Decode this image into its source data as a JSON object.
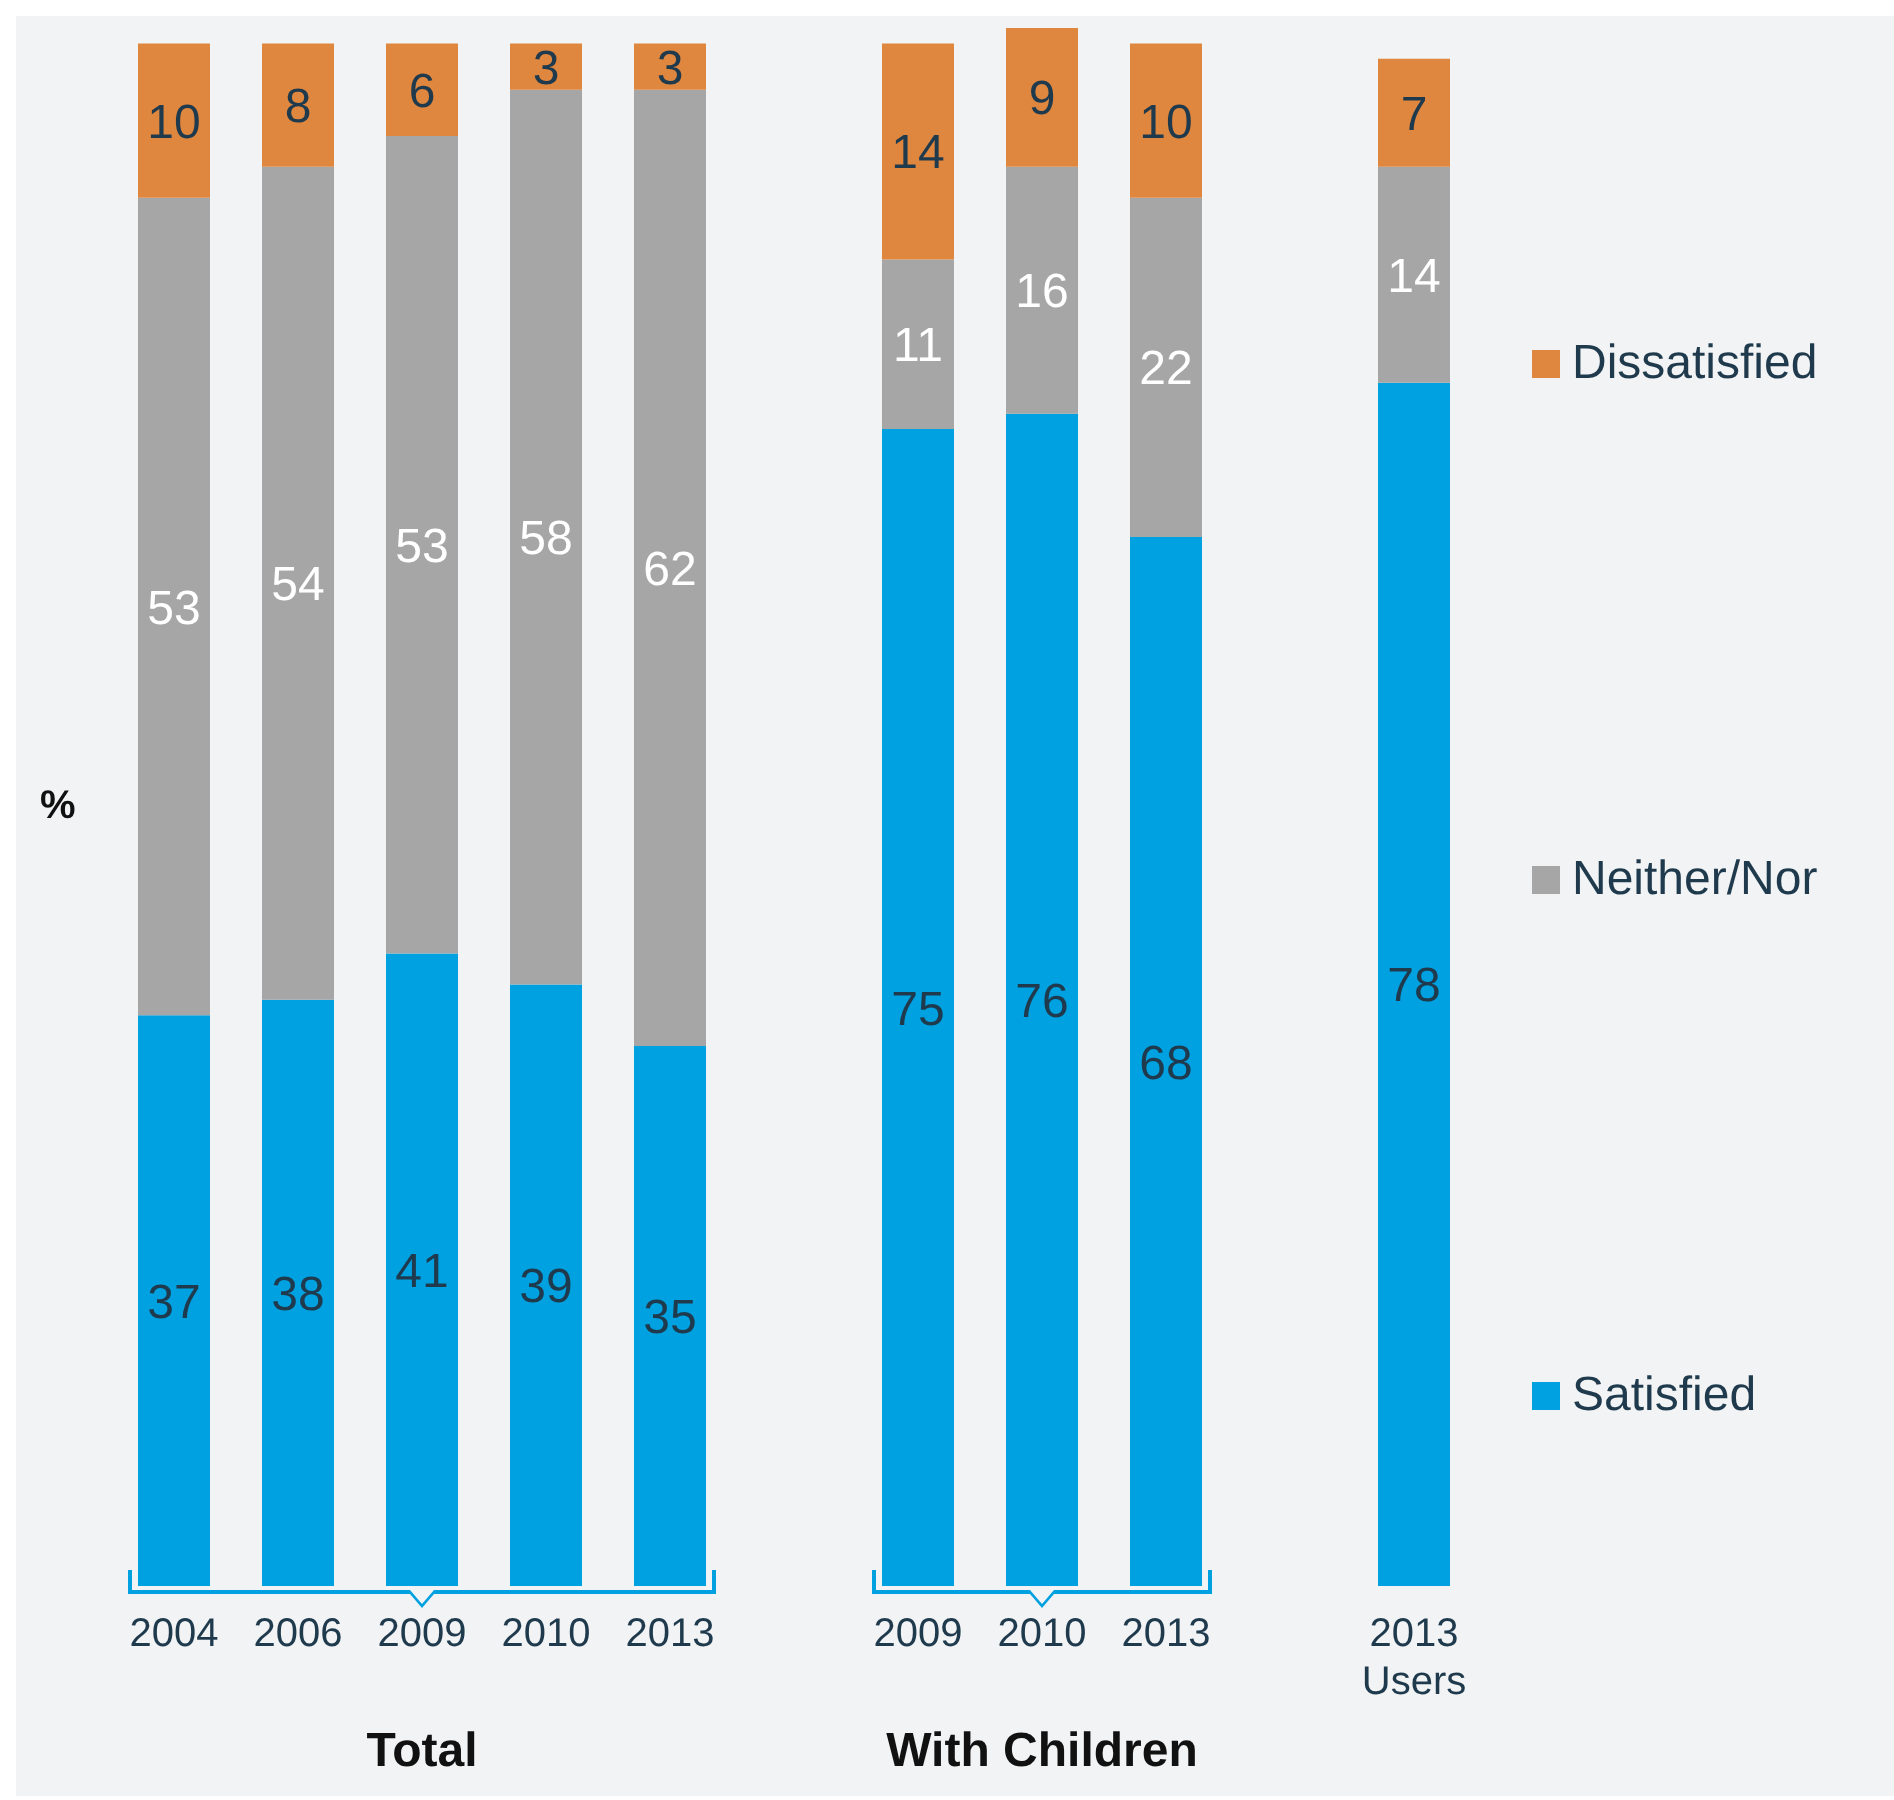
{
  "chart_data": {
    "type": "bar",
    "stacked": true,
    "ylabel": "%",
    "data_labels": true,
    "legend": "right",
    "categories": [
      "2004",
      "2006",
      "2009",
      "2010",
      "2013",
      null,
      "2009",
      "2010",
      "2013",
      null,
      "2013 Users"
    ],
    "series": [
      {
        "name": "Satisfied",
        "color": "#00a1e0",
        "values": [
          37,
          38,
          41,
          39,
          35,
          null,
          75,
          76,
          68,
          null,
          78
        ]
      },
      {
        "name": "Neither/Nor",
        "color": "#a6a6a6",
        "values": [
          53,
          54,
          53,
          58,
          62,
          null,
          11,
          16,
          22,
          null,
          14
        ]
      },
      {
        "name": "Dissatisfied",
        "color": "#e0873f",
        "values": [
          10,
          8,
          6,
          3,
          3,
          null,
          14,
          9,
          10,
          null,
          7
        ]
      }
    ],
    "annotations": [
      "Total",
      "With Children"
    ]
  }
}
